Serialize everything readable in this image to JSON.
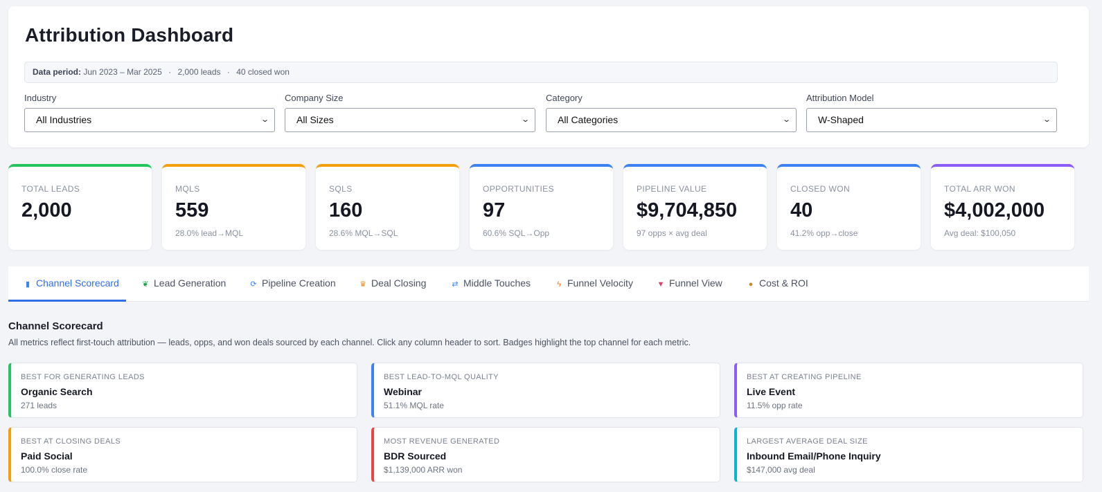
{
  "page_title": "Attribution Dashboard",
  "data_period": {
    "label": "Data period:",
    "range": "Jun 2023 – Mar 2025",
    "leads": "2,000 leads",
    "closed": "40 closed won",
    "separator": "·"
  },
  "filters": [
    {
      "label": "Industry",
      "value": "All Industries"
    },
    {
      "label": "Company Size",
      "value": "All Sizes"
    },
    {
      "label": "Category",
      "value": "All Categories"
    },
    {
      "label": "Attribution Model",
      "value": "W-Shaped"
    }
  ],
  "kpis": [
    {
      "label": "TOTAL LEADS",
      "value": "2,000",
      "sub": "",
      "color": "#22c55e"
    },
    {
      "label": "MQLS",
      "value": "559",
      "sub": "28.0% lead→MQL",
      "color": "#f59e0b"
    },
    {
      "label": "SQLS",
      "value": "160",
      "sub": "28.6% MQL→SQL",
      "color": "#f59e0b"
    },
    {
      "label": "OPPORTUNITIES",
      "value": "97",
      "sub": "60.6% SQL→Opp",
      "color": "#3b82f6"
    },
    {
      "label": "PIPELINE VALUE",
      "value": "$9,704,850",
      "sub": "97 opps × avg deal",
      "color": "#3b82f6"
    },
    {
      "label": "CLOSED WON",
      "value": "40",
      "sub": "41.2% opp→close",
      "color": "#3b82f6"
    },
    {
      "label": "TOTAL ARR WON",
      "value": "$4,002,000",
      "sub": "Avg deal: $100,050",
      "color": "#8b5cf6"
    }
  ],
  "tabs": [
    {
      "label": "Channel Scorecard",
      "icon": "bar-chart-icon",
      "glyph": "▮",
      "glyph_color": "#3b82f6",
      "active": true
    },
    {
      "label": "Lead Generation",
      "icon": "seedling-icon",
      "glyph": "❦",
      "glyph_color": "#22a34a",
      "active": false
    },
    {
      "label": "Pipeline Creation",
      "icon": "refresh-icon",
      "glyph": "⟳",
      "glyph_color": "#3b82f6",
      "active": false
    },
    {
      "label": "Deal Closing",
      "icon": "trophy-icon",
      "glyph": "♛",
      "glyph_color": "#e08a1a",
      "active": false
    },
    {
      "label": "Middle Touches",
      "icon": "shuffle-icon",
      "glyph": "⇄",
      "glyph_color": "#3b82f6",
      "active": false
    },
    {
      "label": "Funnel Velocity",
      "icon": "lightning-icon",
      "glyph": "ϟ",
      "glyph_color": "#f97316",
      "active": false
    },
    {
      "label": "Funnel View",
      "icon": "funnel-icon",
      "glyph": "▼",
      "glyph_color": "#e23d6a",
      "active": false
    },
    {
      "label": "Cost & ROI",
      "icon": "money-bag-icon",
      "glyph": "●",
      "glyph_color": "#c98a2a",
      "active": false
    }
  ],
  "section": {
    "title": "Channel Scorecard",
    "description": "All metrics reflect first-touch attribution — leads, opps, and won deals sourced by each channel. Click any column header to sort. Badges highlight the top channel for each metric."
  },
  "best_cards": [
    {
      "label": "BEST FOR GENERATING LEADS",
      "name": "Organic Search",
      "sub": "271 leads",
      "color": "#22c55e"
    },
    {
      "label": "BEST LEAD-TO-MQL QUALITY",
      "name": "Webinar",
      "sub": "51.1% MQL rate",
      "color": "#3b82f6"
    },
    {
      "label": "BEST AT CREATING PIPELINE",
      "name": "Live Event",
      "sub": "11.5% opp rate",
      "color": "#8b5cf6"
    },
    {
      "label": "BEST AT CLOSING DEALS",
      "name": "Paid Social",
      "sub": "100.0% close rate",
      "color": "#f59e0b"
    },
    {
      "label": "MOST REVENUE GENERATED",
      "name": "BDR Sourced",
      "sub": "$1,139,000 ARR won",
      "color": "#ef4444"
    },
    {
      "label": "LARGEST AVERAGE DEAL SIZE",
      "name": "Inbound Email/Phone Inquiry",
      "sub": "$147,000 avg deal",
      "color": "#06b6d4"
    }
  ]
}
